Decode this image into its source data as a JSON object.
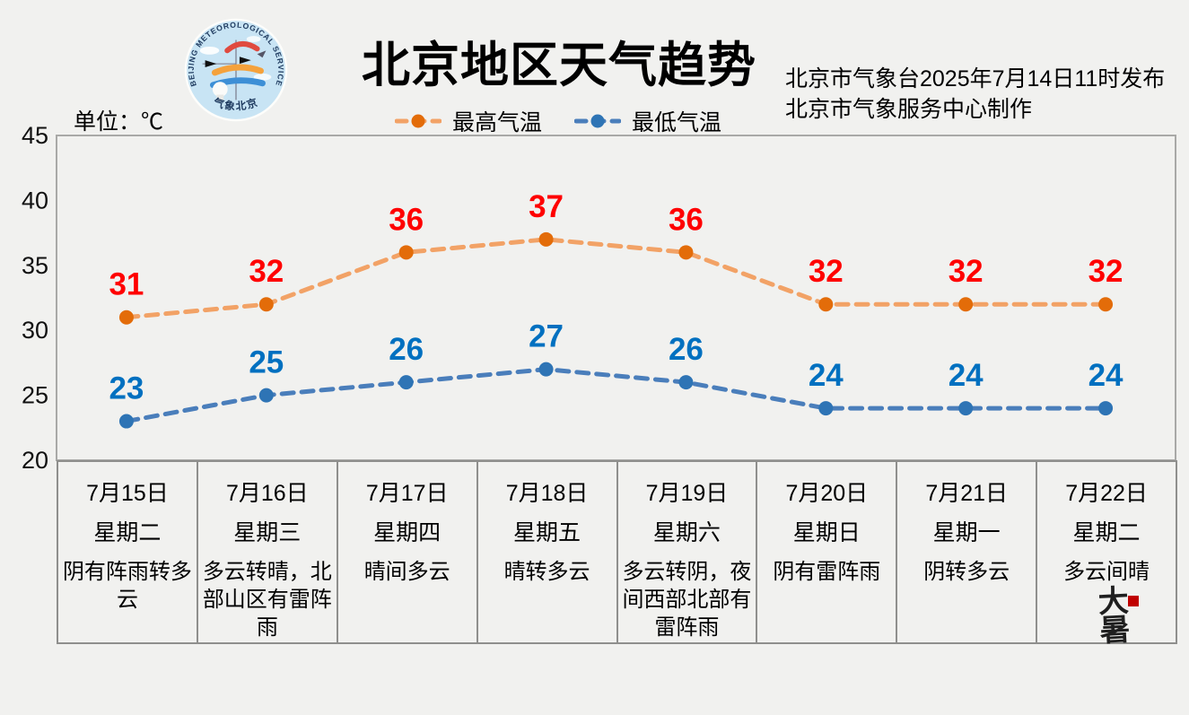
{
  "header": {
    "title": "北京地区天气趋势",
    "unit_label": "单位：℃",
    "publisher_line1": "北京市气象台2025年7月14日11时发布",
    "publisher_line2": "北京市气象服务中心制作",
    "logo": {
      "arc_text": "BEIJING METEOROLOGICAL SERVICE",
      "bottom_text": "气象北京"
    }
  },
  "chart_data": {
    "type": "line",
    "title": "北京地区天气趋势",
    "categories": [
      "7月15日",
      "7月16日",
      "7月17日",
      "7月18日",
      "7月19日",
      "7月20日",
      "7月21日",
      "7月22日"
    ],
    "weekdays": [
      "星期二",
      "星期三",
      "星期四",
      "星期五",
      "星期六",
      "星期日",
      "星期一",
      "星期二"
    ],
    "conditions": [
      "阴有阵雨转多云",
      "多云转晴，北部山区有雷阵雨",
      "晴间多云",
      "晴转多云",
      "多云转阴，夜间西部北部有雷阵雨",
      "阴有雷阵雨",
      "阴转多云",
      "多云间晴"
    ],
    "series": [
      {
        "name": "最高气温",
        "values": [
          31,
          32,
          36,
          37,
          36,
          32,
          32,
          32
        ],
        "line_color": "#F2A266",
        "marker_color": "#E36C09",
        "label_color": "#FF0000"
      },
      {
        "name": "最低气温",
        "values": [
          23,
          25,
          26,
          27,
          26,
          24,
          24,
          24
        ],
        "line_color": "#4A7EBB",
        "marker_color": "#2E74B5",
        "label_color": "#0070C0"
      }
    ],
    "ylim": [
      20,
      45
    ],
    "yticks": [
      45,
      40,
      35,
      30,
      25,
      20
    ],
    "ylabel": "单位：℃",
    "grid": false,
    "legend_position": "top"
  },
  "seal": {
    "text": "大暑"
  }
}
